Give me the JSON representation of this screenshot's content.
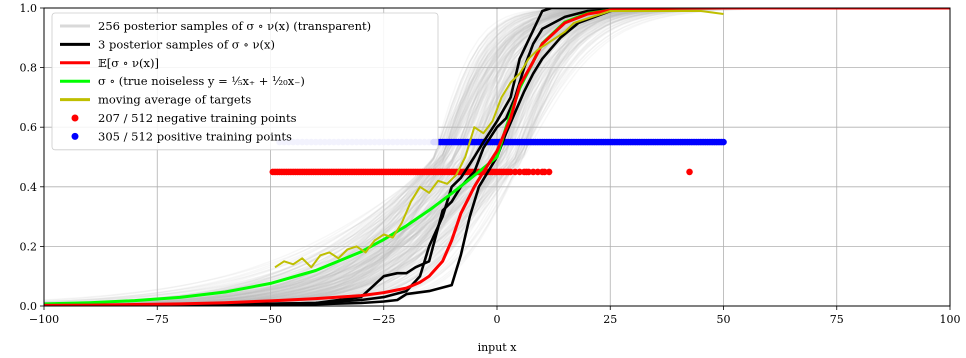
{
  "chart_data": {
    "type": "line",
    "xlabel": "input x",
    "ylabel": "",
    "xlim": [
      -100,
      100
    ],
    "ylim": [
      0.0,
      1.0
    ],
    "xticks": [
      "−100",
      "−75",
      "−50",
      "−25",
      "0",
      "25",
      "50",
      "75",
      "100"
    ],
    "xtick_values": [
      -100,
      -75,
      -50,
      -25,
      0,
      25,
      50,
      75,
      100
    ],
    "yticks": [
      "0.0",
      "0.2",
      "0.4",
      "0.6",
      "0.8",
      "1.0"
    ],
    "ytick_values": [
      0.0,
      0.2,
      0.4,
      0.6,
      0.8,
      1.0
    ],
    "grid": true,
    "legend_placement": "top-left",
    "legend": [
      {
        "label": "256 posterior samples of σ ∘ ν(x) (transparent)",
        "color": "#d9d9d9",
        "kind": "line"
      },
      {
        "label": "3 posterior samples of σ ∘ ν(x)",
        "color": "#000000",
        "kind": "line"
      },
      {
        "label": "𝔼[σ ∘ ν(x)]",
        "color": "#ff0000",
        "kind": "line"
      },
      {
        "label": "σ ∘ (true noiseless y = ⅕x₊ + ¹⁄₂₀x₋)",
        "color": "#00ff00",
        "kind": "line"
      },
      {
        "label": "moving average of targets",
        "color": "#bfbf00",
        "kind": "line"
      },
      {
        "label": "207 / 512 negative training points",
        "color": "#ff0000",
        "kind": "dot"
      },
      {
        "label": "305 / 512 positive training points",
        "color": "#0000ff",
        "kind": "dot"
      }
    ],
    "series": [
      {
        "role": "true",
        "color": "#00ff00",
        "x": [
          -100,
          -90,
          -80,
          -70,
          -60,
          -50,
          -40,
          -30,
          -25,
          -20,
          -15,
          -10,
          -5,
          0,
          2,
          5,
          10,
          15,
          20,
          25,
          30,
          40,
          50,
          75,
          100
        ],
        "y": [
          0.007,
          0.011,
          0.018,
          0.029,
          0.047,
          0.076,
          0.119,
          0.182,
          0.223,
          0.269,
          0.321,
          0.378,
          0.438,
          0.5,
          0.6,
          0.731,
          0.881,
          0.953,
          0.982,
          0.993,
          0.997,
          0.999,
          1.0,
          1.0,
          1.0
        ]
      },
      {
        "role": "mean",
        "color": "#ff0000",
        "x": [
          -100,
          -90,
          -80,
          -70,
          -60,
          -50,
          -40,
          -30,
          -25,
          -20,
          -17,
          -15,
          -12,
          -10,
          -8,
          -5,
          -3,
          0,
          3,
          5,
          8,
          10,
          15,
          20,
          25,
          30,
          40,
          50,
          75,
          100
        ],
        "y": [
          0.002,
          0.003,
          0.005,
          0.007,
          0.011,
          0.017,
          0.025,
          0.035,
          0.045,
          0.06,
          0.08,
          0.1,
          0.15,
          0.22,
          0.31,
          0.4,
          0.45,
          0.52,
          0.63,
          0.74,
          0.82,
          0.88,
          0.95,
          0.98,
          0.993,
          0.997,
          0.999,
          1.0,
          1.0,
          1.0
        ]
      },
      {
        "role": "moving-average",
        "color": "#bfbf00",
        "x": [
          -49,
          -47,
          -45,
          -43,
          -41,
          -39,
          -37,
          -35,
          -33,
          -31,
          -29,
          -27,
          -25,
          -23,
          -21,
          -19,
          -17,
          -15,
          -13,
          -11,
          -9,
          -7,
          -5,
          -3,
          -1,
          1,
          3,
          5,
          7,
          9,
          11,
          13,
          15,
          17,
          19,
          21,
          23,
          25,
          27,
          30,
          35,
          40,
          45,
          50
        ],
        "y": [
          0.13,
          0.15,
          0.14,
          0.16,
          0.13,
          0.17,
          0.18,
          0.16,
          0.19,
          0.2,
          0.18,
          0.22,
          0.24,
          0.23,
          0.28,
          0.35,
          0.4,
          0.38,
          0.42,
          0.41,
          0.44,
          0.5,
          0.6,
          0.58,
          0.62,
          0.7,
          0.75,
          0.78,
          0.83,
          0.86,
          0.88,
          0.9,
          0.92,
          0.95,
          0.96,
          0.97,
          0.98,
          0.99,
          0.99,
          0.99,
          0.99,
          0.99,
          0.99,
          0.98
        ]
      },
      {
        "role": "sample",
        "color": "#000000",
        "x": [
          -100,
          -60,
          -40,
          -30,
          -25,
          -20,
          -17,
          -15,
          -12,
          -10,
          -8,
          -5,
          -3,
          0,
          3,
          5,
          10,
          12,
          15,
          20,
          30,
          50,
          100
        ],
        "y": [
          0.0,
          0.005,
          0.01,
          0.02,
          0.03,
          0.05,
          0.1,
          0.2,
          0.3,
          0.4,
          0.43,
          0.5,
          0.55,
          0.62,
          0.7,
          0.83,
          0.99,
          1.0,
          1.0,
          1.0,
          1.0,
          1.0,
          1.0
        ]
      },
      {
        "role": "sample",
        "color": "#000000",
        "x": [
          -100,
          -60,
          -40,
          -30,
          -25,
          -22,
          -20,
          -18,
          -15,
          -12,
          -10,
          -8,
          -5,
          -3,
          0,
          2,
          4,
          6,
          8,
          10,
          15,
          20,
          30,
          50,
          100
        ],
        "y": [
          0.0,
          0.005,
          0.01,
          0.03,
          0.1,
          0.11,
          0.11,
          0.13,
          0.15,
          0.32,
          0.35,
          0.4,
          0.45,
          0.53,
          0.6,
          0.63,
          0.7,
          0.8,
          0.88,
          0.93,
          0.97,
          0.99,
          1.0,
          1.0,
          1.0
        ]
      },
      {
        "role": "sample",
        "color": "#000000",
        "x": [
          -100,
          -60,
          -40,
          -30,
          -25,
          -22,
          -20,
          -15,
          -10,
          -8,
          -6,
          -4,
          -2,
          0,
          2,
          4,
          6,
          8,
          10,
          14,
          18,
          25,
          30,
          50,
          100
        ],
        "y": [
          0.0,
          0.003,
          0.006,
          0.01,
          0.015,
          0.02,
          0.04,
          0.05,
          0.07,
          0.17,
          0.3,
          0.4,
          0.45,
          0.5,
          0.58,
          0.65,
          0.72,
          0.78,
          0.83,
          0.9,
          0.95,
          0.99,
          1.0,
          1.0,
          1.0
        ]
      }
    ],
    "posterior_band": {
      "color": "#bdbdbd",
      "x_center_shift_range": [
        -14,
        6
      ],
      "steepness_range": [
        0.11,
        0.22
      ],
      "count": 256
    },
    "points": {
      "negative": {
        "color": "#ff0000",
        "y": 0.45,
        "x": [
          -49.5,
          -49,
          -48.5,
          -48,
          -47.5,
          -47,
          -46.5,
          -46,
          -45.5,
          -45,
          -44.5,
          -44,
          -43.5,
          -43,
          -42.5,
          -42,
          -41.5,
          -41,
          -40.5,
          -40,
          -39.5,
          -39,
          -38.5,
          -38,
          -37.5,
          -37,
          -36.5,
          -36,
          -35.5,
          -35,
          -34.5,
          -34,
          -33.5,
          -33,
          -32.5,
          -32,
          -31.5,
          -31,
          -30.5,
          -30,
          -29.5,
          -29,
          -28.5,
          -28,
          -27.5,
          -27,
          -26.5,
          -26,
          -25.5,
          -25,
          -24.5,
          -24,
          -23.5,
          -23,
          -22.5,
          -22,
          -21.5,
          -21,
          -20.5,
          -20,
          -19.5,
          -19,
          -18.5,
          -18,
          -17.5,
          -17,
          -16.5,
          -16,
          -15.5,
          -15,
          -14.5,
          -14,
          -13.5,
          -13,
          -12.5,
          -12,
          -11.5,
          -11,
          -10.5,
          -10,
          -9.5,
          -9,
          -8.5,
          -8,
          -7.5,
          -7,
          -6.5,
          -6,
          -5.5,
          -5,
          -4.5,
          -4,
          -3.5,
          -3,
          -2.5,
          -2,
          -1.5,
          -1,
          -0.5,
          0,
          0.5,
          1,
          1.5,
          2,
          2.5,
          3,
          4,
          5,
          6,
          6.5,
          7,
          8,
          9,
          10,
          10.5,
          11.5,
          42.5
        ]
      },
      "positive": {
        "color": "#0000ff",
        "faded_color": "#a7a7ee",
        "y": 0.55,
        "x_faded": [
          -48,
          -47,
          -46,
          -45,
          -44,
          -43,
          -42,
          -41,
          -40,
          -39,
          -38,
          -37,
          -36,
          -35,
          -34,
          -33,
          -32,
          -31,
          -30,
          -29,
          -28,
          -27,
          -26,
          -25,
          -24,
          -23,
          -22,
          -21,
          -20,
          -19,
          -18,
          -17,
          -16,
          -15
        ],
        "x": [
          -14,
          -13.5,
          -13,
          -12.5,
          -12,
          -11.5,
          -11,
          -10.5,
          -10,
          -9.5,
          -9,
          -8.5,
          -8,
          -7.5,
          -7,
          -6.5,
          -6,
          -5.5,
          -5,
          -4.5,
          -4,
          -3.5,
          -3,
          -2.5,
          -2,
          -1.5,
          -1,
          -0.5,
          0,
          0.5,
          1,
          1.5,
          2,
          2.5,
          3,
          3.5,
          4,
          4.5,
          5,
          5.5,
          6,
          6.5,
          7,
          7.5,
          8,
          8.5,
          9,
          9.5,
          10,
          10.5,
          11,
          11.5,
          12,
          12.5,
          13,
          13.5,
          14,
          14.5,
          15,
          15.5,
          16,
          16.5,
          17,
          17.5,
          18,
          18.5,
          19,
          19.5,
          20,
          20.5,
          21,
          21.5,
          22,
          22.5,
          23,
          23.5,
          24,
          24.5,
          25,
          25.5,
          26,
          26.5,
          27,
          27.5,
          28,
          28.5,
          29,
          29.5,
          30,
          30.5,
          31,
          31.5,
          32,
          32.5,
          33,
          33.5,
          34,
          34.5,
          35,
          35.5,
          36,
          36.5,
          37,
          37.5,
          38,
          38.5,
          39,
          39.5,
          40,
          40.5,
          41,
          41.5,
          42,
          42.5,
          43,
          43.5,
          44,
          44.5,
          45,
          45.5,
          46,
          46.5,
          47,
          47.5,
          48,
          48.5,
          49,
          49.5,
          50
        ]
      }
    }
  }
}
